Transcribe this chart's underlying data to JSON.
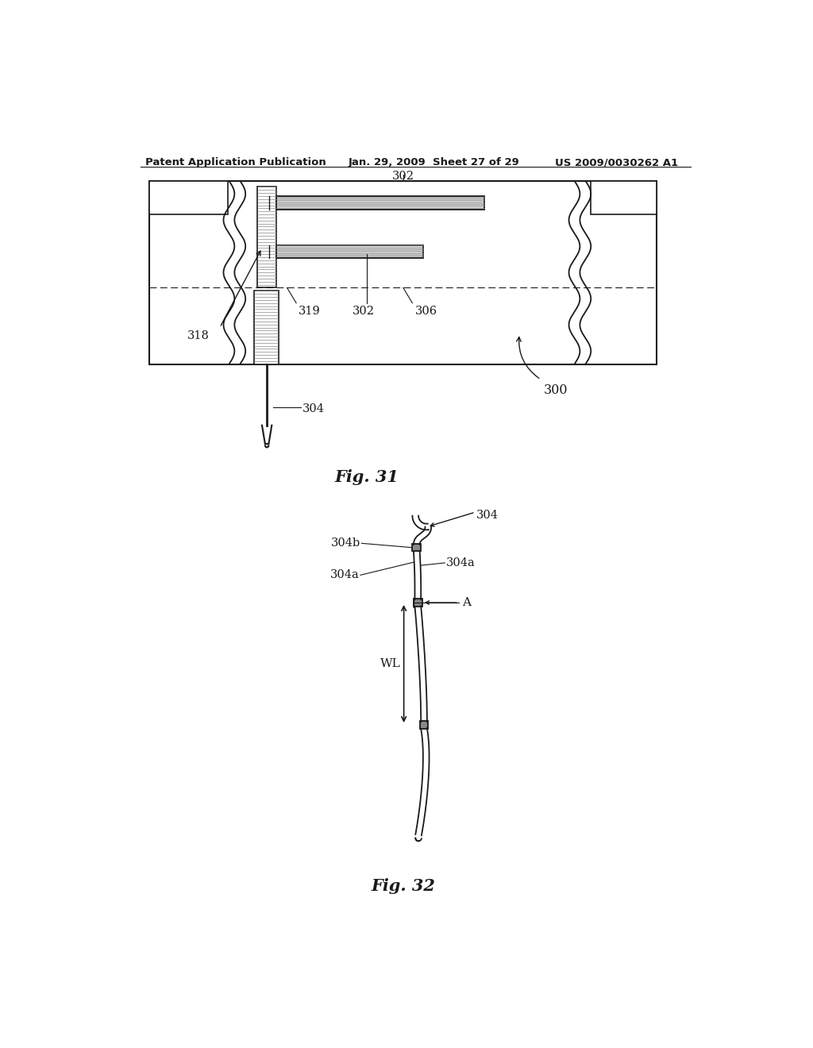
{
  "header_left": "Patent Application Publication",
  "header_mid": "Jan. 29, 2009  Sheet 27 of 29",
  "header_right": "US 2009/0030262 A1",
  "fig31_caption": "Fig. 31",
  "fig32_caption": "Fig. 32",
  "bg_color": "#ffffff",
  "line_color": "#1a1a1a",
  "gray_color": "#aaaaaa",
  "dark_gray": "#555555"
}
